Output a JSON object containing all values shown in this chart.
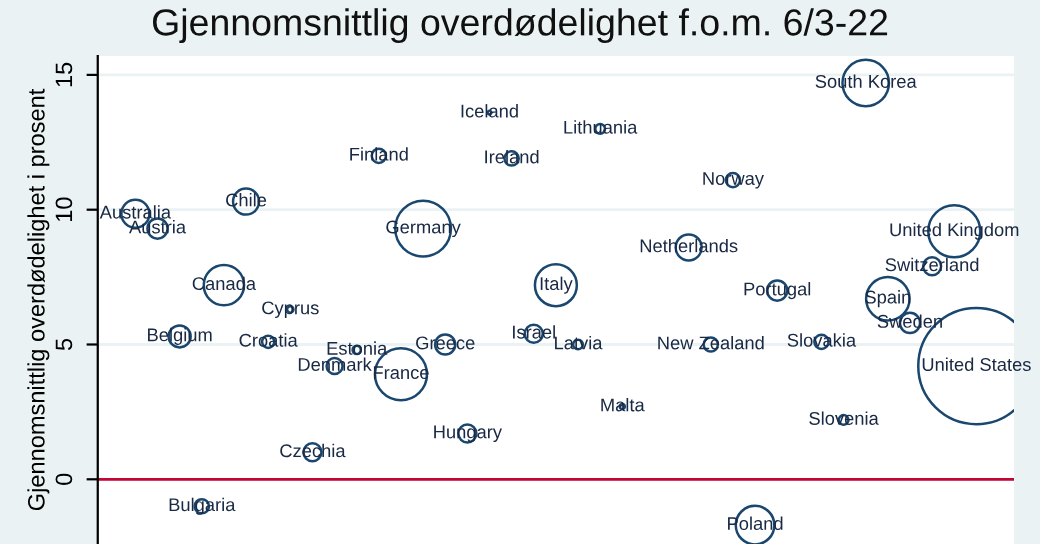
{
  "chart_data": {
    "type": "bubble",
    "title": "Gjennomsnittlig overdødelighet f.o.m. 6/3-22",
    "ylabel": "Gjennomsnittlig overdødelighet i prosent",
    "categories": [
      "Australia",
      "Austria",
      "Belgium",
      "Bulgaria",
      "Canada",
      "Chile",
      "Croatia",
      "Cyprus",
      "Czechia",
      "Denmark",
      "Estonia",
      "Finland",
      "France",
      "Germany",
      "Greece",
      "Hungary",
      "Iceland",
      "Ireland",
      "Israel",
      "Italy",
      "Latvia",
      "Lithuania",
      "Malta",
      null,
      null,
      "Netherlands",
      "New Zealand",
      "Norway",
      "Poland",
      "Portugal",
      null,
      "Slovakia",
      "Slovenia",
      "South Korea",
      "Spain",
      "Sweden",
      "Switzerland",
      "United Kingdom",
      "United States"
    ],
    "series": [
      {
        "color": "#1a476f",
        "values": [
          9.85,
          9.3,
          5.3,
          -1.0,
          7.2,
          10.3,
          5.1,
          6.3,
          1.0,
          4.2,
          4.8,
          12.0,
          3.9,
          9.3,
          5.0,
          1.7,
          13.6,
          11.9,
          5.4,
          7.2,
          5.0,
          13.0,
          2.7,
          null,
          null,
          8.6,
          5.0,
          11.1,
          -1.7,
          7.0,
          null,
          5.1,
          2.2,
          14.7,
          6.7,
          5.8,
          7.9,
          9.2,
          4.2
        ],
        "sizes": [
          0.058,
          0.03,
          0.036,
          0.015,
          0.12,
          0.05,
          0.011,
          0.003,
          0.024,
          0.019,
          0.005,
          0.015,
          0.2,
          0.23,
          0.03,
          0.024,
          0.001,
          0.015,
          0.024,
          0.13,
          0.007,
          0.007,
          0.002,
          null,
          null,
          0.05,
          0.015,
          0.015,
          0.11,
          0.03,
          null,
          0.015,
          0.007,
          0.16,
          0.14,
          0.03,
          0.024,
          0.2,
          1
        ]
      }
    ],
    "ylim": [
      -2.4,
      15.7
    ],
    "yticks": [
      0,
      5,
      10,
      15
    ],
    "tick_labels": "y",
    "grid": "y",
    "ref_lines": [
      {
        "axis": "y",
        "value": 0,
        "color": "#c10534"
      }
    ],
    "legend": false
  }
}
